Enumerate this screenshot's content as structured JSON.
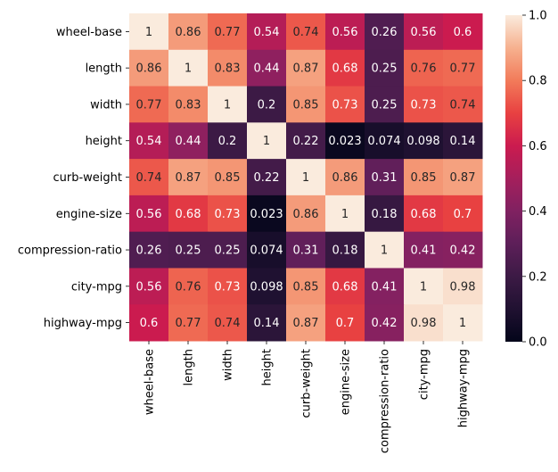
{
  "chart_data": {
    "type": "heatmap",
    "title": "",
    "xlabel": "",
    "ylabel": "",
    "variables": [
      "wheel-base",
      "length",
      "width",
      "height",
      "curb-weight",
      "engine-size",
      "compression-ratio",
      "city-mpg",
      "highway-mpg"
    ],
    "matrix": [
      [
        1,
        0.86,
        0.77,
        0.54,
        0.74,
        0.56,
        0.26,
        0.56,
        0.6
      ],
      [
        0.86,
        1,
        0.83,
        0.44,
        0.87,
        0.68,
        0.25,
        0.76,
        0.77
      ],
      [
        0.77,
        0.83,
        1,
        0.2,
        0.85,
        0.73,
        0.25,
        0.73,
        0.74
      ],
      [
        0.54,
        0.44,
        0.2,
        1,
        0.22,
        0.023,
        0.074,
        0.098,
        0.14
      ],
      [
        0.74,
        0.87,
        0.85,
        0.22,
        1,
        0.86,
        0.31,
        0.85,
        0.87
      ],
      [
        0.56,
        0.68,
        0.73,
        0.023,
        0.86,
        1,
        0.18,
        0.68,
        0.7
      ],
      [
        0.26,
        0.25,
        0.25,
        0.074,
        0.31,
        0.18,
        1,
        0.41,
        0.42
      ],
      [
        0.56,
        0.76,
        0.73,
        0.098,
        0.85,
        0.68,
        0.41,
        1,
        0.98
      ],
      [
        0.6,
        0.77,
        0.74,
        0.14,
        0.87,
        0.7,
        0.42,
        0.98,
        1
      ]
    ],
    "annotations": [
      [
        "1",
        "0.86",
        "0.77",
        "0.54",
        "0.74",
        "0.56",
        "0.26",
        "0.56",
        "0.6"
      ],
      [
        "0.86",
        "1",
        "0.83",
        "0.44",
        "0.87",
        "0.68",
        "0.25",
        "0.76",
        "0.77"
      ],
      [
        "0.77",
        "0.83",
        "1",
        "0.2",
        "0.85",
        "0.73",
        "0.25",
        "0.73",
        "0.74"
      ],
      [
        "0.54",
        "0.44",
        "0.2",
        "1",
        "0.22",
        "0.023",
        "0.074",
        "0.098",
        "0.14"
      ],
      [
        "0.74",
        "0.87",
        "0.85",
        "0.22",
        "1",
        "0.86",
        "0.31",
        "0.85",
        "0.87"
      ],
      [
        "0.56",
        "0.68",
        "0.73",
        "0.023",
        "0.86",
        "1",
        "0.18",
        "0.68",
        "0.7"
      ],
      [
        "0.26",
        "0.25",
        "0.25",
        "0.074",
        "0.31",
        "0.18",
        "1",
        "0.41",
        "0.42"
      ],
      [
        "0.56",
        "0.76",
        "0.73",
        "0.098",
        "0.85",
        "0.68",
        "0.41",
        "1",
        "0.98"
      ],
      [
        "0.6",
        "0.77",
        "0.74",
        "0.14",
        "0.87",
        "0.7",
        "0.42",
        "0.98",
        "1"
      ]
    ],
    "colormap": "rocket",
    "vmin": 0,
    "vmax": 1,
    "colorbar_ticks": [
      "0.0",
      "0.2",
      "0.4",
      "0.6",
      "0.8",
      "1.0"
    ],
    "colorbar_tick_values": [
      0,
      0.2,
      0.4,
      0.6,
      0.8,
      1.0
    ]
  }
}
